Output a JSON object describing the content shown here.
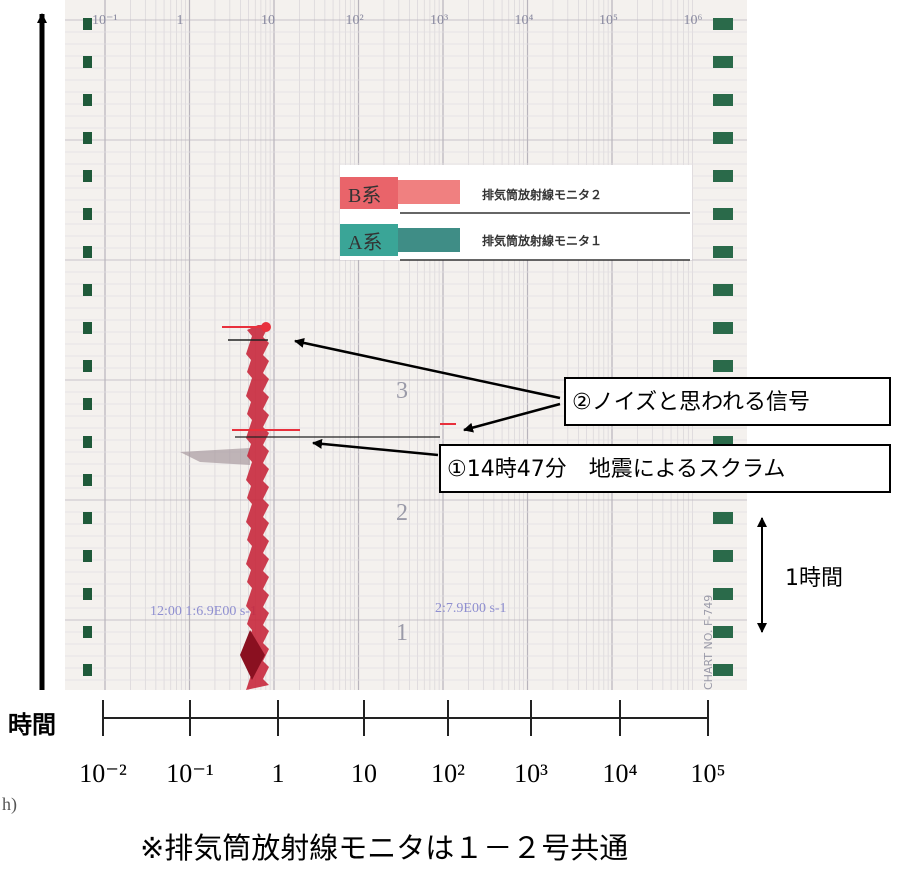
{
  "paper": {
    "scale_labels": [
      "10⁻¹",
      "1",
      "10",
      "10²",
      "10³",
      "10⁴",
      "10⁵",
      "10⁶"
    ],
    "hour_labels": [
      "3",
      "2",
      "1"
    ],
    "print_line_1": "12:00 1:6.9E00 s-1",
    "print_line_2": "2:7.9E00 s-1",
    "chart_no": "CHART NO. F-749"
  },
  "legend": {
    "rows": [
      {
        "system": "B系",
        "label": "排気筒放射線モニタ２"
      },
      {
        "system": "A系",
        "label": "排気筒放射線モニタ１"
      }
    ]
  },
  "annotations": [
    "②ノイズと思われる信号",
    "①14時47分　地震によるスクラム"
  ],
  "interval_label": "1時間",
  "axis": {
    "title": "時間",
    "tick_labels": [
      "10⁻²",
      "10⁻¹",
      "1",
      "10",
      "10²",
      "10³",
      "10⁴",
      "10⁵"
    ]
  },
  "corner_mark": "h)",
  "footnote": "※排気筒放射線モニタは１－２号共通"
}
